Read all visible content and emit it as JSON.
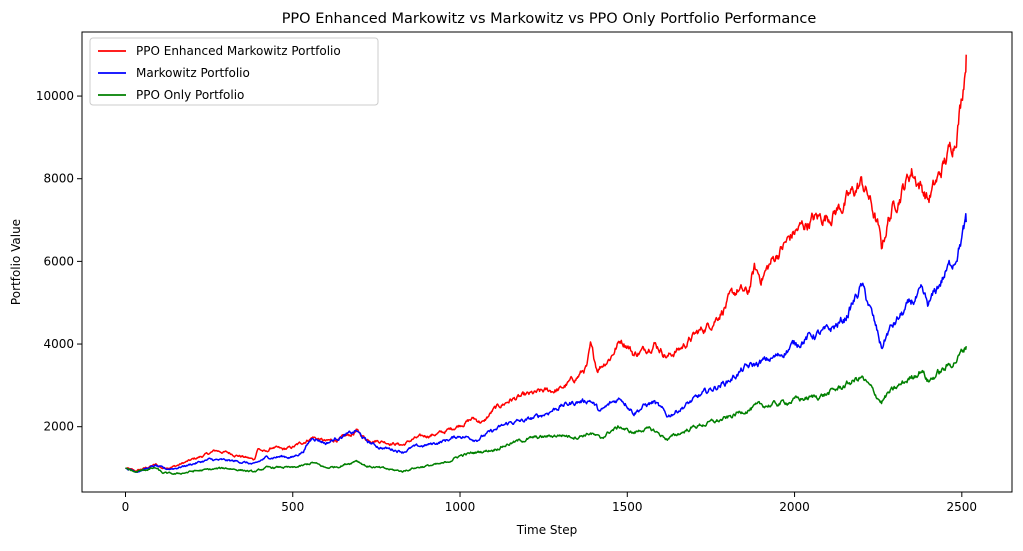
{
  "chart_data": {
    "type": "line",
    "title": "PPO Enhanced Markowitz vs Markowitz vs PPO Only Portfolio Performance",
    "xlabel": "Time Step",
    "ylabel": "Portfolio Value",
    "xlim": [
      -130,
      2650
    ],
    "ylim": [
      420,
      11550
    ],
    "xticks": [
      0,
      500,
      1000,
      1500,
      2000,
      2500
    ],
    "yticks": [
      2000,
      4000,
      6000,
      8000,
      10000
    ],
    "grid": false,
    "legend_position": "top-left",
    "series": [
      {
        "name": "PPO Enhanced Markowitz Portfolio",
        "color": "#ff0000",
        "x": [
          0,
          30,
          60,
          90,
          110,
          150,
          200,
          250,
          270,
          300,
          350,
          385,
          395,
          420,
          440,
          470,
          500,
          530,
          560,
          600,
          640,
          680,
          690,
          720,
          760,
          800,
          830,
          860,
          900,
          950,
          1000,
          1040,
          1070,
          1100,
          1150,
          1200,
          1250,
          1300,
          1350,
          1380,
          1390,
          1410,
          1450,
          1480,
          1500,
          1520,
          1550,
          1580,
          1620,
          1660,
          1700,
          1750,
          1800,
          1830,
          1860,
          1880,
          1900,
          1950,
          1980,
          2000,
          2050,
          2100,
          2150,
          2200,
          2220,
          2250,
          2260,
          2280,
          2300,
          2350,
          2380,
          2400,
          2430,
          2450,
          2480,
          2500,
          2513
        ],
        "y": [
          1000,
          920,
          1000,
          1080,
          1000,
          1050,
          1200,
          1350,
          1420,
          1380,
          1280,
          1200,
          1480,
          1380,
          1500,
          1440,
          1500,
          1620,
          1750,
          1640,
          1700,
          1820,
          1900,
          1700,
          1660,
          1600,
          1560,
          1700,
          1780,
          1860,
          2050,
          2200,
          2100,
          2400,
          2650,
          2750,
          2850,
          2900,
          3200,
          3450,
          3900,
          3400,
          3700,
          4100,
          4000,
          3750,
          3850,
          4050,
          3700,
          3900,
          4200,
          4500,
          5000,
          5300,
          5200,
          5800,
          5600,
          6200,
          6500,
          6700,
          7000,
          7100,
          7400,
          7900,
          7600,
          6800,
          6300,
          7000,
          7400,
          8200,
          7800,
          7500,
          8000,
          8400,
          9000,
          10000,
          11000
        ]
      },
      {
        "name": "Markowitz Portfolio",
        "color": "#0000ff",
        "x": [
          0,
          30,
          60,
          90,
          120,
          150,
          200,
          250,
          300,
          350,
          385,
          420,
          470,
          500,
          530,
          560,
          600,
          640,
          680,
          690,
          720,
          760,
          800,
          830,
          860,
          900,
          950,
          1000,
          1050,
          1100,
          1150,
          1200,
          1250,
          1300,
          1350,
          1390,
          1420,
          1450,
          1480,
          1500,
          1520,
          1550,
          1580,
          1620,
          1660,
          1700,
          1750,
          1800,
          1850,
          1900,
          1950,
          2000,
          2050,
          2100,
          2150,
          2200,
          2220,
          2250,
          2260,
          2280,
          2300,
          2350,
          2380,
          2400,
          2430,
          2450,
          2480,
          2500,
          2513
        ],
        "y": [
          1000,
          920,
          980,
          1050,
          970,
          1000,
          1100,
          1200,
          1180,
          1150,
          1080,
          1250,
          1280,
          1260,
          1400,
          1750,
          1600,
          1750,
          1850,
          1900,
          1650,
          1500,
          1450,
          1400,
          1500,
          1550,
          1650,
          1780,
          1700,
          1900,
          2100,
          2150,
          2300,
          2500,
          2600,
          2650,
          2350,
          2550,
          2700,
          2550,
          2350,
          2500,
          2600,
          2250,
          2450,
          2650,
          2900,
          3100,
          3400,
          3550,
          3700,
          4000,
          4200,
          4300,
          4600,
          5400,
          5000,
          4200,
          3900,
          4300,
          4500,
          5000,
          5200,
          4900,
          5400,
          5700,
          6100,
          6600,
          6950
        ]
      },
      {
        "name": "PPO Only Portfolio",
        "color": "#008000",
        "x": [
          0,
          30,
          60,
          90,
          110,
          150,
          200,
          250,
          300,
          350,
          385,
          420,
          470,
          500,
          530,
          560,
          600,
          640,
          680,
          690,
          720,
          760,
          800,
          830,
          860,
          900,
          950,
          1000,
          1050,
          1100,
          1150,
          1200,
          1250,
          1300,
          1350,
          1390,
          1420,
          1450,
          1480,
          1500,
          1520,
          1550,
          1580,
          1620,
          1660,
          1700,
          1750,
          1800,
          1850,
          1900,
          1950,
          2000,
          2050,
          2100,
          2150,
          2200,
          2220,
          2250,
          2260,
          2280,
          2300,
          2350,
          2380,
          2400,
          2430,
          2450,
          2480,
          2500,
          2513
        ],
        "y": [
          1000,
          900,
          960,
          1000,
          880,
          850,
          920,
          960,
          1000,
          950,
          900,
          1000,
          1020,
          1000,
          1050,
          1130,
          1000,
          1050,
          1150,
          1200,
          1050,
          1000,
          950,
          920,
          1000,
          1050,
          1100,
          1300,
          1380,
          1450,
          1600,
          1700,
          1750,
          1800,
          1760,
          1850,
          1700,
          1900,
          2000,
          1900,
          1850,
          1950,
          1900,
          1700,
          1850,
          2000,
          2100,
          2200,
          2400,
          2500,
          2550,
          2650,
          2700,
          2800,
          3000,
          3200,
          3000,
          2700,
          2600,
          2800,
          2900,
          3200,
          3400,
          3100,
          3300,
          3400,
          3600,
          3800,
          3950
        ]
      }
    ]
  }
}
